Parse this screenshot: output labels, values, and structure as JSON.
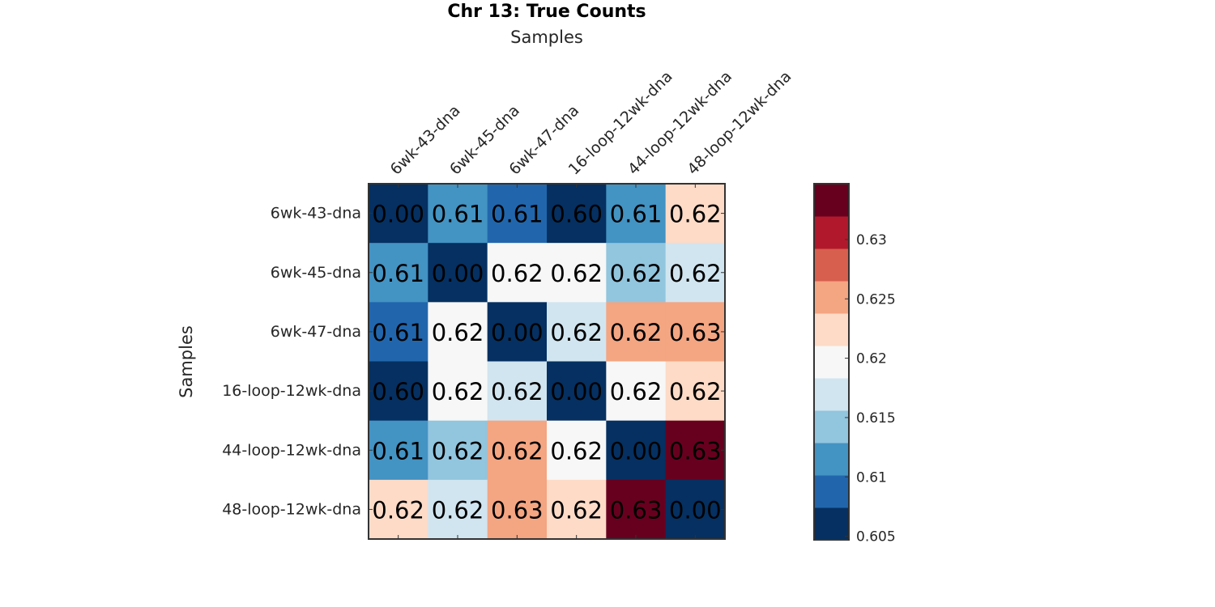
{
  "chart_data": {
    "type": "heatmap",
    "title": "Chr 13: True Counts",
    "xlabel": "Samples",
    "ylabel": "Samples",
    "x_categories": [
      "6wk-43-dna",
      "6wk-45-dna",
      "6wk-47-dna",
      "16-loop-12wk-dna",
      "44-loop-12wk-dna",
      "48-loop-12wk-dna"
    ],
    "y_categories": [
      "6wk-43-dna",
      "6wk-45-dna",
      "6wk-47-dna",
      "16-loop-12wk-dna",
      "44-loop-12wk-dna",
      "48-loop-12wk-dna"
    ],
    "x_tick_position": "top",
    "values": [
      [
        0.0,
        0.6115,
        0.609,
        0.604,
        0.6115,
        0.6225
      ],
      [
        0.6115,
        0.0,
        0.6197,
        0.6197,
        0.6156,
        0.6175
      ],
      [
        0.609,
        0.6197,
        0.0,
        0.6175,
        0.6245,
        0.6255
      ],
      [
        0.604,
        0.6197,
        0.6175,
        0.0,
        0.6197,
        0.6225
      ],
      [
        0.6115,
        0.6156,
        0.6245,
        0.6197,
        0.0,
        0.634
      ],
      [
        0.6225,
        0.6175,
        0.6255,
        0.6225,
        0.634,
        0.0
      ]
    ],
    "labels": [
      [
        "0.00",
        "0.61",
        "0.61",
        "0.60",
        "0.61",
        "0.62"
      ],
      [
        "0.61",
        "0.00",
        "0.62",
        "0.62",
        "0.62",
        "0.62"
      ],
      [
        "0.61",
        "0.62",
        "0.00",
        "0.62",
        "0.62",
        "0.63"
      ],
      [
        "0.60",
        "0.62",
        "0.62",
        "0.00",
        "0.62",
        "0.62"
      ],
      [
        "0.61",
        "0.62",
        "0.62",
        "0.62",
        "0.00",
        "0.63"
      ],
      [
        "0.62",
        "0.62",
        "0.63",
        "0.62",
        "0.63",
        "0.00"
      ]
    ],
    "colorbar": {
      "range": [
        0.6047,
        0.6347
      ],
      "ticks": [
        0.605,
        0.61,
        0.615,
        0.62,
        0.625,
        0.63
      ],
      "tick_labels": [
        "0.605",
        "0.61",
        "0.615",
        "0.62",
        "0.625",
        "0.63"
      ],
      "colormap": "RdBu_r (11 discrete bins)",
      "colors": [
        "#053061",
        "#2166ac",
        "#4393c3",
        "#92c5de",
        "#d1e5f0",
        "#f7f7f7",
        "#fddbc7",
        "#f4a582",
        "#d6604d",
        "#b2182b",
        "#67001f"
      ],
      "placement": "right"
    },
    "grid": false
  }
}
